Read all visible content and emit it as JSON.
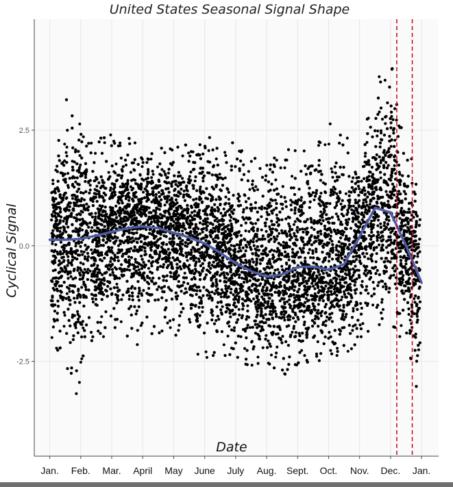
{
  "chart_data": {
    "type": "scatter",
    "title": "United States Seasonal Signal Shape",
    "xlabel": "Date",
    "ylabel": "Cyclical Signal",
    "y_ticks": [
      {
        "value": 2.5,
        "label": "2.5"
      },
      {
        "value": 0.0,
        "label": "0.0"
      },
      {
        "value": -2.5,
        "label": "-2.5"
      }
    ],
    "ylim": [
      -4.55,
      4.9
    ],
    "xlim": [
      -0.5,
      12.55
    ],
    "x_ticks": [
      {
        "value": 0,
        "label": "Jan."
      },
      {
        "value": 1,
        "label": "Feb."
      },
      {
        "value": 2,
        "label": "Mar."
      },
      {
        "value": 3,
        "label": "April"
      },
      {
        "value": 4,
        "label": "May"
      },
      {
        "value": 5,
        "label": "June"
      },
      {
        "value": 6,
        "label": "July"
      },
      {
        "value": 7,
        "label": "Aug."
      },
      {
        "value": 8,
        "label": "Sept."
      },
      {
        "value": 9,
        "label": "Oct."
      },
      {
        "value": 10,
        "label": "Nov."
      },
      {
        "value": 11,
        "label": "Dec."
      },
      {
        "value": 12,
        "label": "Jan."
      }
    ],
    "grid": true,
    "scatter_series": {
      "color": "#000000",
      "x_range": [
        0.05,
        11.95
      ],
      "envelope": [
        {
          "x": 0.1,
          "low": -2.9,
          "high": 1.7
        },
        {
          "x": 0.5,
          "low": -2.5,
          "high": 3.3
        },
        {
          "x": 1.0,
          "low": -3.7,
          "high": 2.8
        },
        {
          "x": 1.5,
          "low": -2.3,
          "high": 2.6
        },
        {
          "x": 2.0,
          "low": -2.0,
          "high": 2.4
        },
        {
          "x": 3.0,
          "low": -2.2,
          "high": 2.3
        },
        {
          "x": 4.0,
          "low": -1.9,
          "high": 2.1
        },
        {
          "x": 5.0,
          "low": -2.5,
          "high": 2.5
        },
        {
          "x": 6.0,
          "low": -2.6,
          "high": 2.2
        },
        {
          "x": 7.0,
          "low": -2.8,
          "high": 1.8
        },
        {
          "x": 8.0,
          "low": -2.8,
          "high": 2.3
        },
        {
          "x": 9.0,
          "low": -2.4,
          "high": 2.8
        },
        {
          "x": 10.0,
          "low": -2.3,
          "high": 2.1
        },
        {
          "x": 10.5,
          "low": -1.8,
          "high": 3.5
        },
        {
          "x": 11.0,
          "low": -1.7,
          "high": 4.1
        },
        {
          "x": 11.5,
          "low": -2.2,
          "high": 2.0
        },
        {
          "x": 11.95,
          "low": -3.8,
          "high": 1.9
        }
      ]
    },
    "trend_series": {
      "color": "#4e5aa3",
      "x": [
        0.0,
        0.5,
        1.0,
        1.5,
        2.0,
        2.5,
        3.0,
        3.5,
        4.0,
        4.5,
        5.0,
        5.5,
        6.0,
        6.5,
        7.0,
        7.5,
        8.0,
        8.5,
        9.0,
        9.5,
        10.0,
        10.5,
        11.0,
        11.5,
        12.0
      ],
      "y": [
        0.13,
        0.13,
        0.15,
        0.22,
        0.3,
        0.38,
        0.42,
        0.38,
        0.28,
        0.18,
        0.05,
        -0.15,
        -0.38,
        -0.55,
        -0.67,
        -0.62,
        -0.46,
        -0.45,
        -0.52,
        -0.4,
        0.2,
        0.82,
        0.72,
        0.0,
        -0.8
      ]
    },
    "reference_lines": {
      "color": "#c8102e",
      "style": "dashed",
      "x": [
        11.2,
        11.7
      ]
    }
  }
}
